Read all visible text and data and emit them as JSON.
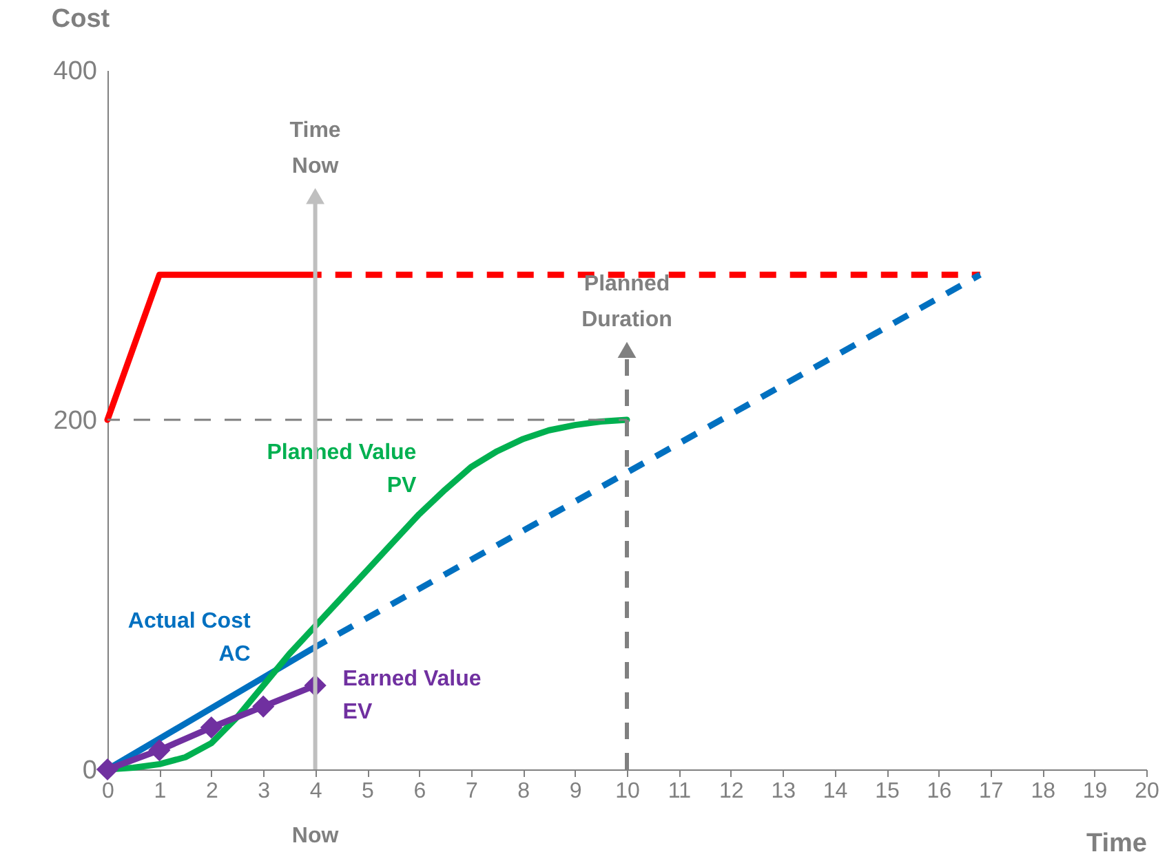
{
  "chart_data": {
    "type": "line",
    "xlabel": "Time",
    "ylabel": "Cost",
    "xlim": [
      0,
      20
    ],
    "xticks": [
      0,
      1,
      2,
      3,
      4,
      5,
      6,
      7,
      8,
      9,
      10,
      11,
      12,
      13,
      14,
      15,
      16,
      17,
      18,
      19,
      20
    ],
    "ylim": [
      0,
      400
    ],
    "yticks": [
      0,
      200,
      400
    ],
    "grid": false,
    "series": [
      {
        "color": "#ff0000",
        "line_style": "solid",
        "x": [
          0,
          1,
          4
        ],
        "values": [
          200,
          283,
          283
        ]
      },
      {
        "color": "#ff0000",
        "line_style": "dashed",
        "x": [
          4,
          16.8
        ],
        "values": [
          283,
          283
        ]
      },
      {
        "name": "Actual Cost\nAC",
        "color": "#0070c0",
        "line_style": "solid",
        "x": [
          0,
          4
        ],
        "values": [
          0,
          70
        ]
      },
      {
        "color": "#0070c0",
        "line_style": "dashed",
        "x": [
          4,
          16.8
        ],
        "values": [
          70,
          283
        ]
      },
      {
        "name": "Planned Value\nPV",
        "color": "#00b050",
        "line_style": "solid",
        "x": [
          0,
          0.5,
          1,
          1.5,
          2,
          2.5,
          3,
          3.5,
          4,
          4.5,
          5,
          5.5,
          6,
          6.5,
          7,
          7.5,
          8,
          8.5,
          9,
          9.5,
          10
        ],
        "values": [
          0,
          1,
          3,
          7,
          15,
          30,
          48,
          66,
          82,
          98,
          114,
          130,
          146,
          160,
          173,
          182,
          189,
          194,
          197,
          199,
          200
        ]
      },
      {
        "name": "Earned Value\nEV",
        "color": "#7030a0",
        "line_style": "solid",
        "marker": "diamond",
        "x": [
          0,
          1,
          2,
          3,
          4
        ],
        "values": [
          0,
          11,
          24,
          36,
          48
        ]
      },
      {
        "color": "#7f7f7f",
        "line_style": "dashed",
        "x": [
          0,
          10
        ],
        "values": [
          200,
          200
        ]
      }
    ],
    "ref_lines": [
      {
        "axis": "x",
        "value": 4,
        "label": "Time\nNow",
        "color": "#bfbfbf",
        "line_style": "solid"
      },
      {
        "axis": "x",
        "value": 10,
        "label": "Planned\nDuration",
        "color": "#808080",
        "line_style": "dashed"
      }
    ],
    "annotations": [
      {
        "text": "Now",
        "x": 4,
        "y": 0
      }
    ]
  }
}
